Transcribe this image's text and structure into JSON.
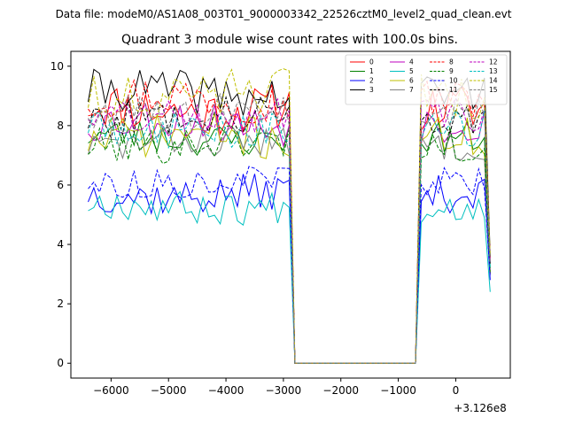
{
  "suptitle": "Data file: modeM0/AS1A08_003T01_9000003342_22526cztM0_level2_quad_clean.evt",
  "chart_data": {
    "type": "line",
    "title": "Quadrant 3 module wise count rates with 100.0s bins.",
    "xlabel": "",
    "ylabel": "",
    "x_offset_label": "+3.126e8",
    "xlim": [
      -6700,
      950
    ],
    "ylim": [
      -0.5,
      10.5
    ],
    "xticks": [
      -6000,
      -5000,
      -4000,
      -3000,
      -2000,
      -1000,
      0
    ],
    "xtick_labels": [
      "−6000",
      "−5000",
      "−4000",
      "−3000",
      "−2000",
      "−1000",
      "0"
    ],
    "yticks": [
      0,
      2,
      4,
      6,
      8,
      10
    ],
    "ytick_labels": [
      "0",
      "2",
      "4",
      "6",
      "8",
      "10"
    ],
    "x_description": "100 s bins; active from -6400 to -2900, zero from -2800 to -700, active from -600 to 500, drop at 600",
    "gap": {
      "start": -2800,
      "end": -700
    },
    "active1": {
      "start": -6400,
      "end": -2900
    },
    "active2": {
      "start": -600,
      "end": 500
    },
    "final_x": 600,
    "legend_position": "top-right",
    "legend_columns": 4,
    "series": [
      {
        "name": "0",
        "color": "#ff0000",
        "dash": "solid",
        "mean": 8.6,
        "amp": 0.5,
        "final": 3.0,
        "seed": 11
      },
      {
        "name": "1",
        "color": "#008000",
        "dash": "solid",
        "mean": 7.6,
        "amp": 0.35,
        "final": 3.2,
        "seed": 23
      },
      {
        "name": "2",
        "color": "#0000ff",
        "dash": "solid",
        "mean": 5.7,
        "amp": 0.4,
        "final": 2.8,
        "seed": 37
      },
      {
        "name": "3",
        "color": "#000000",
        "dash": "solid",
        "mean": 9.1,
        "amp": 0.45,
        "final": 3.6,
        "seed": 41
      },
      {
        "name": "4",
        "color": "#bf00bf",
        "dash": "solid",
        "mean": 8.1,
        "amp": 0.45,
        "final": 3.4,
        "seed": 53
      },
      {
        "name": "5",
        "color": "#00bfbf",
        "dash": "solid",
        "mean": 5.3,
        "amp": 0.35,
        "final": 2.4,
        "seed": 67
      },
      {
        "name": "6",
        "color": "#bfbf00",
        "dash": "solid",
        "mean": 7.6,
        "amp": 0.45,
        "final": 3.1,
        "seed": 71
      },
      {
        "name": "7",
        "color": "#808080",
        "dash": "solid",
        "mean": 7.4,
        "amp": 0.35,
        "final": 3.0,
        "seed": 83
      },
      {
        "name": "8",
        "color": "#ff0000",
        "dash": "dashed",
        "mean": 8.9,
        "amp": 0.45,
        "final": 3.5,
        "seed": 97
      },
      {
        "name": "9",
        "color": "#008000",
        "dash": "dashed",
        "mean": 7.4,
        "amp": 0.4,
        "final": 3.0,
        "seed": 101
      },
      {
        "name": "10",
        "color": "#0000ff",
        "dash": "dashed",
        "mean": 6.1,
        "amp": 0.3,
        "final": 2.9,
        "seed": 113
      },
      {
        "name": "11",
        "color": "#000000",
        "dash": "dashed",
        "mean": 8.3,
        "amp": 0.4,
        "final": 3.3,
        "seed": 127
      },
      {
        "name": "12",
        "color": "#bf00bf",
        "dash": "dashed",
        "mean": 8.4,
        "amp": 0.4,
        "final": 3.4,
        "seed": 131
      },
      {
        "name": "13",
        "color": "#00bfbf",
        "dash": "dashed",
        "mean": 7.9,
        "amp": 0.4,
        "final": 3.2,
        "seed": 149
      },
      {
        "name": "14",
        "color": "#bfbf00",
        "dash": "dashed",
        "mean": 9.0,
        "amp": 0.5,
        "final": 3.6,
        "seed": 151
      },
      {
        "name": "15",
        "color": "#808080",
        "dash": "dashed",
        "mean": 8.5,
        "amp": 0.4,
        "final": 3.4,
        "seed": 163
      }
    ]
  }
}
